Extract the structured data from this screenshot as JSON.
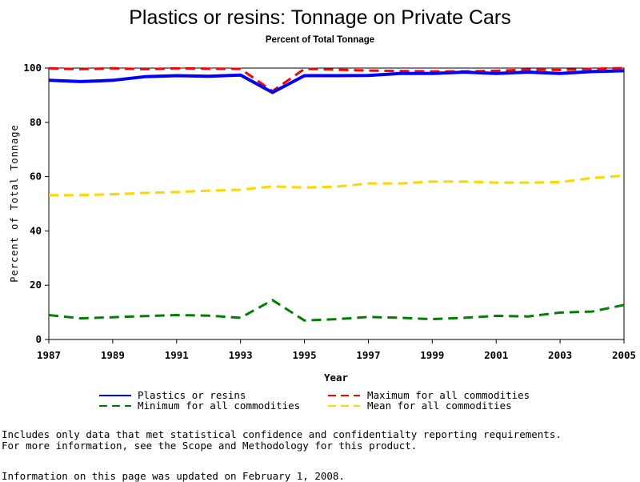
{
  "chart_data": {
    "type": "line",
    "title": "Plastics or resins: Tonnage on Private Cars",
    "subtitle": "Percent of Total Tonnage",
    "xlabel": "Year",
    "ylabel": "Percent of Total Tonnage",
    "xlim": [
      1987,
      2005
    ],
    "ylim": [
      0,
      100
    ],
    "x_ticks": [
      "1987",
      "1989",
      "1991",
      "1993",
      "1995",
      "1997",
      "1999",
      "2001",
      "2003",
      "2005"
    ],
    "y_ticks": [
      "0",
      "20",
      "40",
      "60",
      "80",
      "100"
    ],
    "x": [
      1987,
      1988,
      1989,
      1990,
      1991,
      1992,
      1993,
      1994,
      1995,
      1996,
      1997,
      1998,
      1999,
      2000,
      2001,
      2002,
      2003,
      2004,
      2005
    ],
    "legend_position": "bottom",
    "series": [
      {
        "name": "Plastics or resins",
        "color": "#0000ff",
        "style": "solid",
        "values": [
          95.5,
          95.0,
          95.5,
          96.8,
          97.2,
          97.0,
          97.4,
          91.0,
          97.2,
          97.2,
          97.3,
          98.0,
          98.0,
          98.5,
          98.0,
          98.5,
          98.0,
          98.7,
          99.0
        ]
      },
      {
        "name": "Maximum for all commodities",
        "color": "#ff0000",
        "style": "dashed",
        "values": [
          99.9,
          99.6,
          99.9,
          99.6,
          99.9,
          99.8,
          99.7,
          91.5,
          99.7,
          99.4,
          99.1,
          98.9,
          98.8,
          98.8,
          99.0,
          99.4,
          99.3,
          99.7,
          100.0
        ]
      },
      {
        "name": "Minimum for all commodities",
        "color": "#008000",
        "style": "dashed",
        "values": [
          9.0,
          7.8,
          8.2,
          8.6,
          9.0,
          8.8,
          8.0,
          14.5,
          7.0,
          7.5,
          8.3,
          8.0,
          7.5,
          8.0,
          8.7,
          8.5,
          9.9,
          10.3,
          12.7
        ]
      },
      {
        "name": "Mean for all commodities",
        "color": "#ffd700",
        "style": "dashed",
        "values": [
          53.2,
          53.2,
          53.5,
          54.0,
          54.3,
          54.8,
          55.2,
          56.4,
          56.0,
          56.3,
          57.5,
          57.5,
          58.2,
          58.2,
          57.8,
          57.8,
          58.0,
          59.5,
          60.4
        ]
      }
    ],
    "legend_order": [
      0,
      1,
      2,
      3
    ]
  },
  "notes": {
    "line1": "Includes only data that met statistical confidence and confidentialty reporting requirements.",
    "line2": "For more information, see the Scope and Methodology for this product.",
    "updated": "Information on this page was updated on February 1, 2008."
  }
}
